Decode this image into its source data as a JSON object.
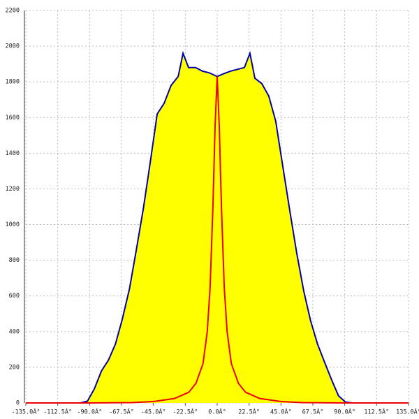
{
  "chart_data": {
    "type": "area-line",
    "xlim": [
      -135,
      135
    ],
    "xticks": [
      {
        "value": -135,
        "label": "-135.0Â°"
      },
      {
        "value": -112.5,
        "label": "-112.5Â°"
      },
      {
        "value": -90,
        "label": "-90.0Â°"
      },
      {
        "value": -67.5,
        "label": "-67.5Â°"
      },
      {
        "value": -45,
        "label": "-45.0Â°"
      },
      {
        "value": -22.5,
        "label": "-22.5Â°"
      },
      {
        "value": 0,
        "label": "0.0Â°"
      },
      {
        "value": 22.5,
        "label": "22.5Â°"
      },
      {
        "value": 45,
        "label": "45.0Â°"
      },
      {
        "value": 67.5,
        "label": "67.5Â°"
      },
      {
        "value": 90,
        "label": "90.0Â°"
      },
      {
        "value": 112.5,
        "label": "112.5Â°"
      },
      {
        "value": 135,
        "label": "135.0Â°"
      }
    ],
    "ylim": [
      0,
      2200
    ],
    "yticks": [
      0,
      200,
      400,
      600,
      800,
      1000,
      1200,
      1400,
      1600,
      1800,
      2000,
      2200
    ],
    "grid": true,
    "series": [
      {
        "color": "#0000aa",
        "fill": "#ffff00",
        "x": [
          -96.4,
          -91.5,
          -86.6,
          -81.6,
          -76.7,
          -71.8,
          -66.9,
          -61.9,
          -57,
          -52.1,
          -47.2,
          -42.3,
          -37.4,
          -32.5,
          -27.5,
          -24.1,
          -20.2,
          -15.2,
          -10.3,
          -5.4,
          0,
          4.4,
          9.3,
          14.3,
          19.2,
          23.1,
          26.6,
          31.5,
          36.4,
          41.3,
          46.2,
          51.2,
          56.1,
          61,
          65.9,
          70.8,
          75.7,
          80.7,
          85.6,
          90.5,
          95.4
        ],
        "values": [
          0,
          10,
          80,
          180,
          240,
          330,
          470,
          640,
          860,
          1090,
          1350,
          1620,
          1680,
          1780,
          1830,
          1960,
          1880,
          1880,
          1860,
          1850,
          1830,
          1845,
          1860,
          1870,
          1880,
          1960,
          1820,
          1790,
          1720,
          1580,
          1330,
          1080,
          840,
          630,
          460,
          330,
          230,
          130,
          40,
          5,
          0
        ]
      },
      {
        "color": "#ee0000",
        "x": [
          -135,
          -90,
          -60,
          -45,
          -30,
          -20,
          -15,
          -10,
          -7,
          -5,
          -3,
          -1.5,
          0,
          1.5,
          3,
          5,
          7,
          10,
          15,
          20,
          30,
          45,
          60,
          90,
          135
        ],
        "values": [
          0,
          0,
          2,
          8,
          25,
          60,
          110,
          220,
          400,
          650,
          1100,
          1550,
          1830,
          1550,
          1100,
          650,
          400,
          220,
          110,
          60,
          25,
          8,
          2,
          0,
          0
        ]
      }
    ]
  }
}
